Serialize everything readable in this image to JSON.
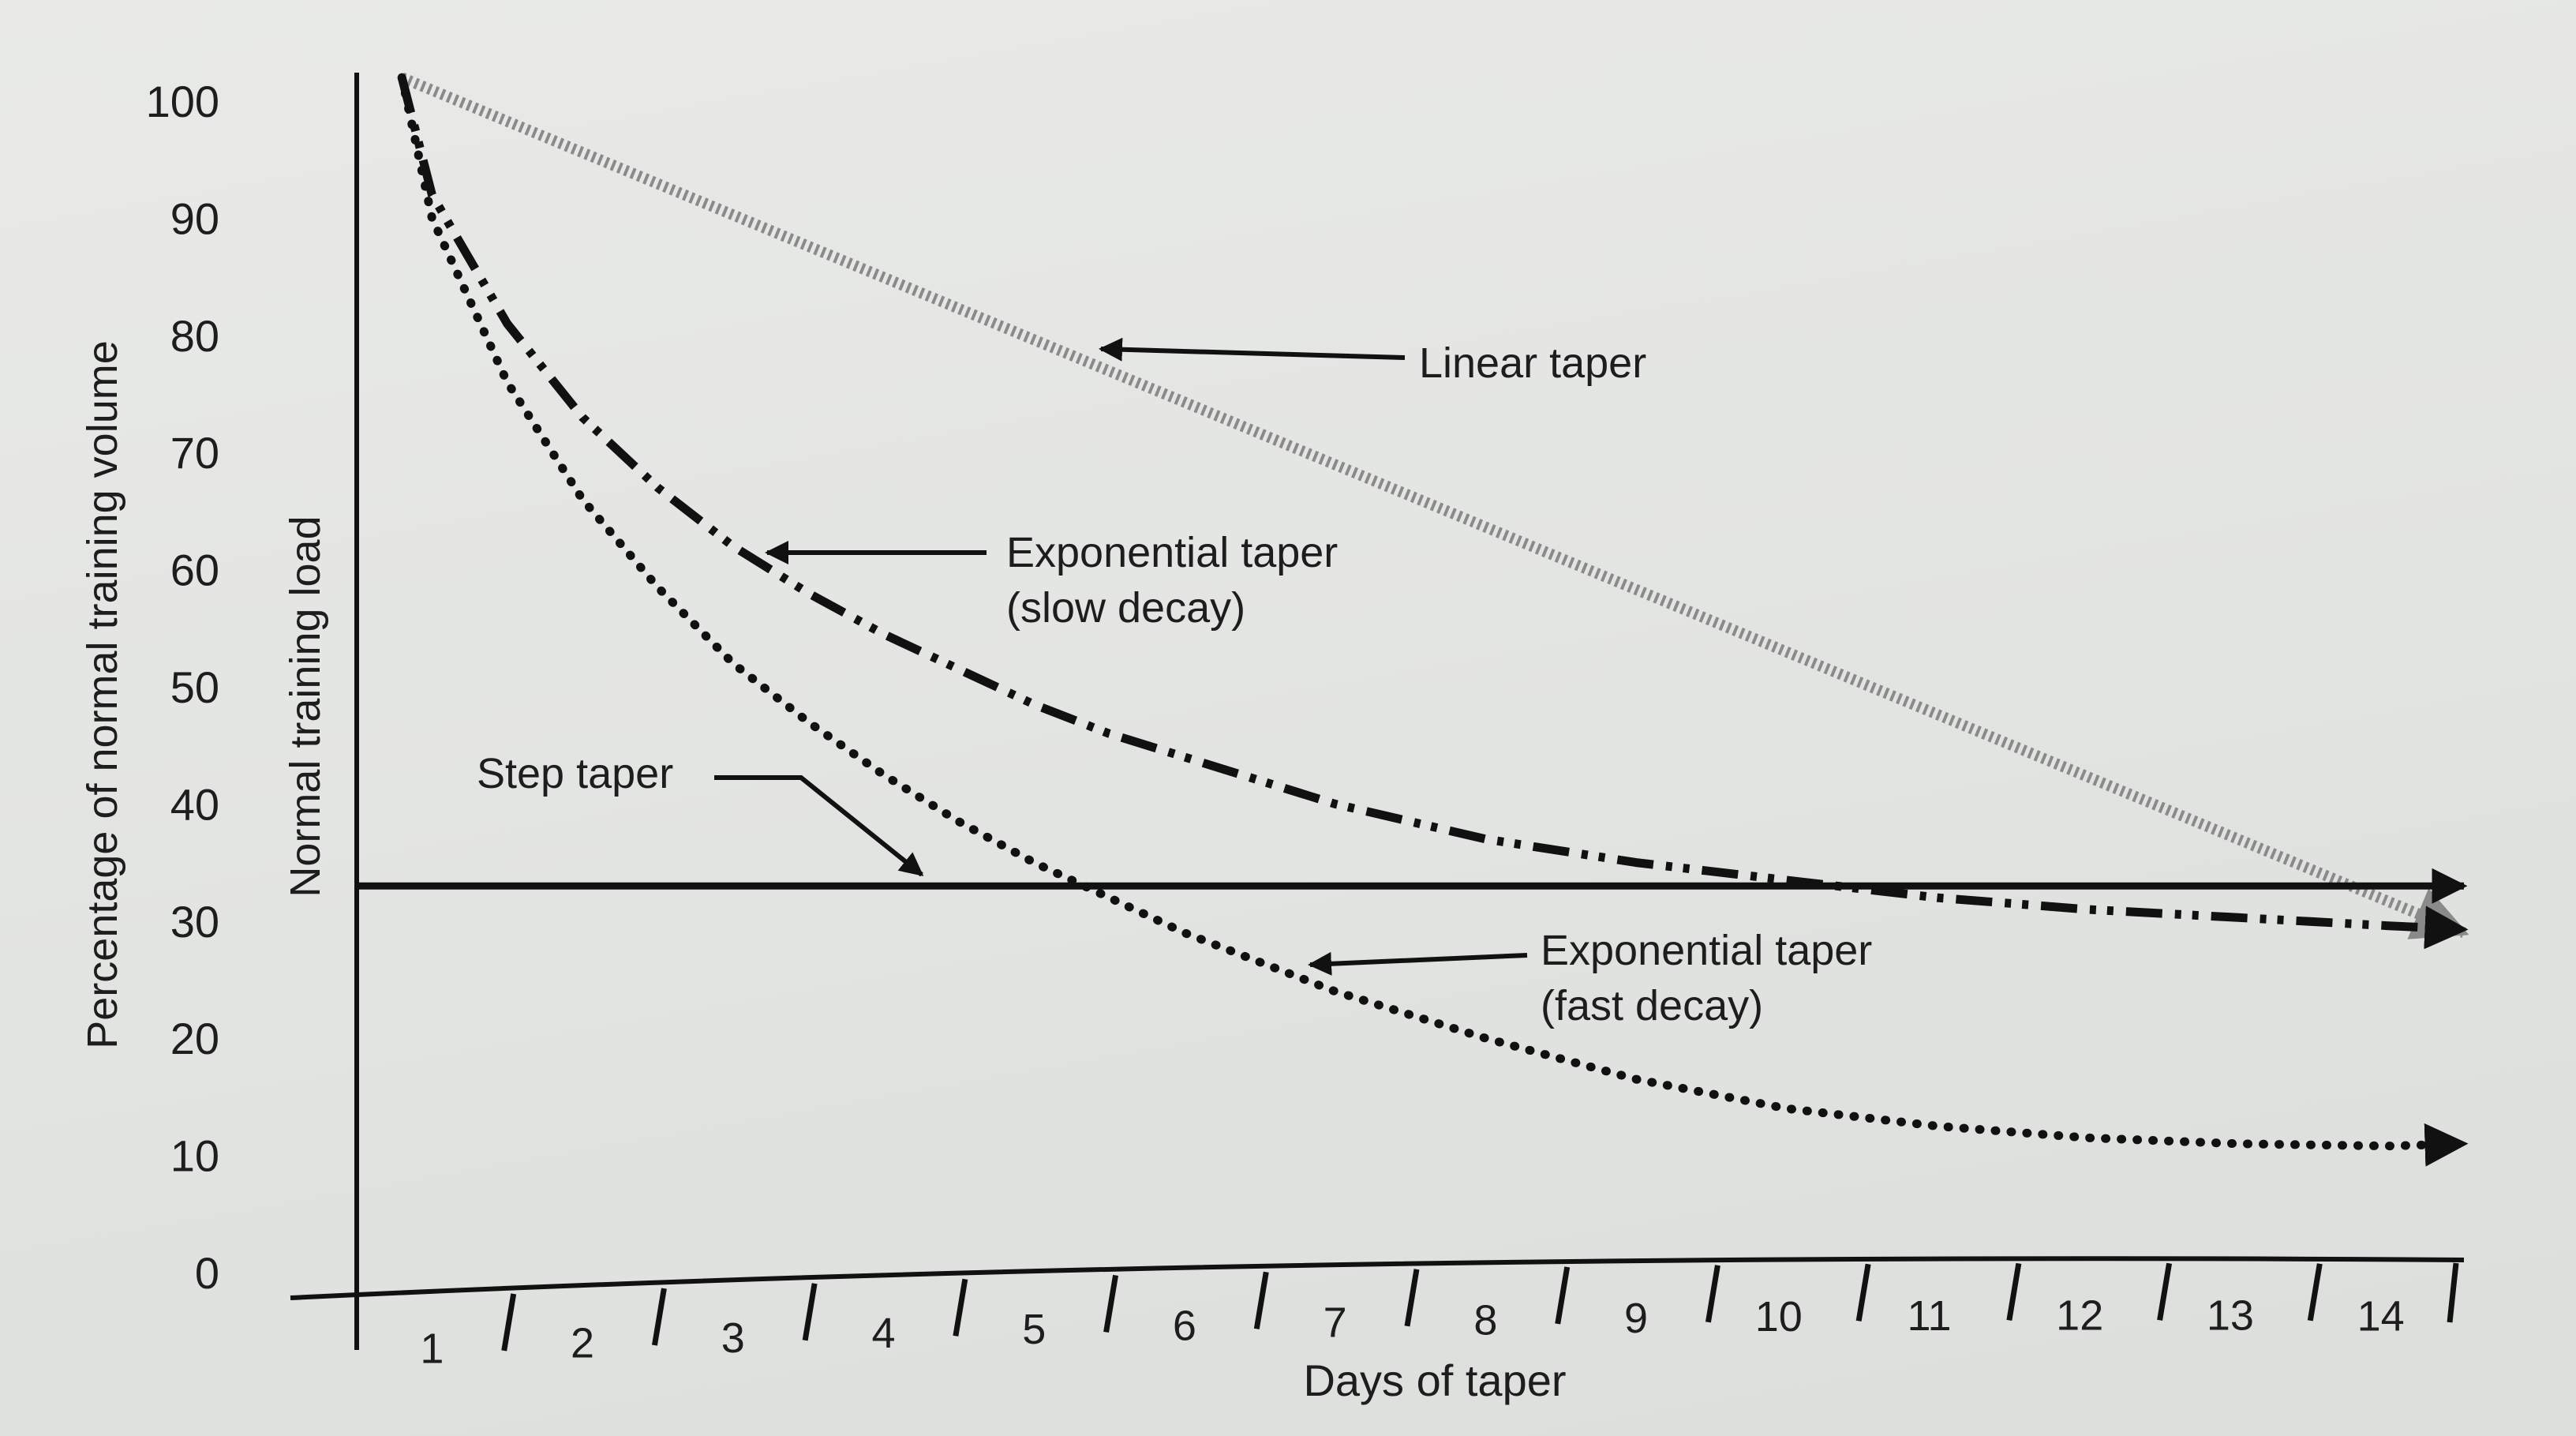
{
  "chart_data": {
    "type": "line",
    "title": "",
    "xlabel": "Days of taper",
    "ylabel_outer": "Percentage of normal training volume",
    "ylabel_inner": "Normal training load",
    "x_ticks": [
      "1",
      "2",
      "3",
      "4",
      "5",
      "6",
      "7",
      "8",
      "9",
      "10",
      "11",
      "12",
      "13",
      "14"
    ],
    "y_ticks": [
      "100",
      "90",
      "80",
      "70",
      "60",
      "50",
      "40",
      "30",
      "20",
      "10",
      "0"
    ],
    "xlim": [
      0.5,
      14.5
    ],
    "ylim": [
      0,
      100
    ],
    "grid": false,
    "series": [
      {
        "name": "Linear taper",
        "style": "gray-dotted",
        "color": "#8a8a8a",
        "x": [
          0.8,
          14.5
        ],
        "y": [
          102,
          29
        ]
      },
      {
        "name": "Exponential taper (slow decay)",
        "style": "dash-dot-dot",
        "color": "#111111",
        "x": [
          0.8,
          1,
          1.5,
          2,
          2.5,
          3,
          3.5,
          4,
          4.5,
          5,
          5.5,
          6,
          7,
          8,
          9,
          10,
          11,
          12,
          13,
          14,
          14.5
        ],
        "y": [
          102,
          92,
          81,
          73,
          67,
          62,
          58,
          54.5,
          51.5,
          48.5,
          46,
          44,
          40,
          37,
          35,
          33.5,
          32,
          31,
          30.3,
          29.6,
          29.3
        ]
      },
      {
        "name": "Exponential taper (fast decay)",
        "style": "dotted",
        "color": "#111111",
        "x": [
          0.8,
          1,
          1.5,
          2,
          2.5,
          3,
          3.5,
          4,
          4.5,
          5,
          5.5,
          6,
          6.5,
          7,
          8,
          9,
          10,
          11,
          12,
          13,
          14,
          14.5
        ],
        "y": [
          102,
          90,
          76,
          66,
          58.5,
          52,
          47,
          42.5,
          38.5,
          35,
          32,
          29,
          26.5,
          24,
          20,
          16.5,
          14,
          12.5,
          11.5,
          11,
          10.8,
          11
        ]
      },
      {
        "name": "Step taper",
        "style": "solid",
        "color": "#111111",
        "x": [
          0.5,
          14.5
        ],
        "y": [
          33,
          33
        ]
      }
    ],
    "annotations": {
      "linear": "Linear taper",
      "slow_line1": "Exponential taper",
      "slow_line2": "(slow decay)",
      "step": "Step taper",
      "fast_line1": "Exponential taper",
      "fast_line2": "(fast decay)"
    }
  }
}
